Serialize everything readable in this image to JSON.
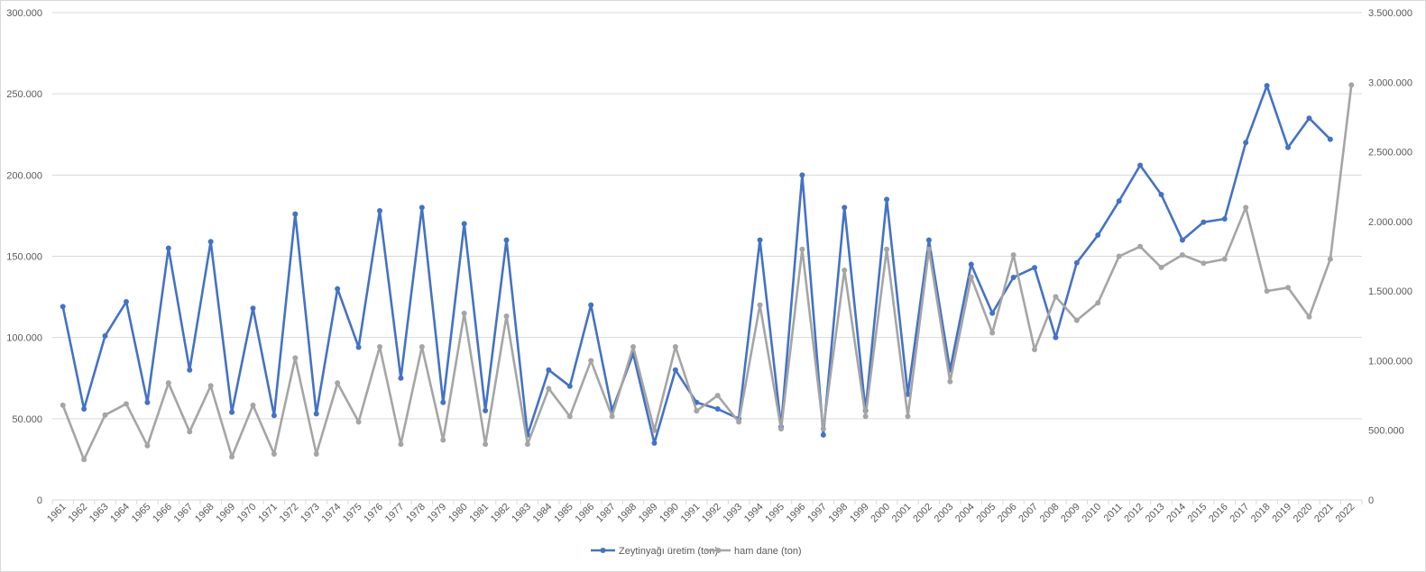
{
  "chart_data": {
    "type": "line",
    "title": "",
    "xlabel": "",
    "ylabel": "",
    "y2label": "",
    "legend_position": "bottom",
    "grid": true,
    "ylim": [
      0,
      300000
    ],
    "y2lim": [
      0,
      3500000
    ],
    "y_ticks": [
      0,
      50000,
      100000,
      150000,
      200000,
      250000,
      300000
    ],
    "y_tick_labels": [
      "0",
      "50.000",
      "100.000",
      "150.000",
      "200.000",
      "250.000",
      "300.000"
    ],
    "y2_ticks": [
      0,
      500000,
      1000000,
      1500000,
      2000000,
      2500000,
      3000000,
      3500000
    ],
    "y2_tick_labels": [
      "0",
      "500.000",
      "1.000.000",
      "1.500.000",
      "2.000.000",
      "2.500.000",
      "3.000.000",
      "3.500.000"
    ],
    "categories": [
      "1961",
      "1962",
      "1963",
      "1964",
      "1965",
      "1966",
      "1967",
      "1968",
      "1969",
      "1970",
      "1971",
      "1972",
      "1973",
      "1974",
      "1975",
      "1976",
      "1977",
      "1978",
      "1979",
      "1980",
      "1981",
      "1982",
      "1983",
      "1984",
      "1985",
      "1986",
      "1987",
      "1988",
      "1989",
      "1990",
      "1991",
      "1992",
      "1993",
      "1994",
      "1995",
      "1996",
      "1997",
      "1998",
      "1999",
      "2000",
      "2001",
      "2002",
      "2003",
      "2004",
      "2005",
      "2006",
      "2007",
      "2008",
      "2009",
      "2010",
      "2011",
      "2012",
      "2013",
      "2014",
      "2015",
      "2016",
      "2017",
      "2018",
      "2019",
      "2020",
      "2021",
      "2022"
    ],
    "series": [
      {
        "name": "Zeytinyağı üretim (ton)",
        "axis": "left",
        "color": "#4472c4",
        "values": [
          119000,
          56000,
          101000,
          122000,
          60000,
          155000,
          80000,
          159000,
          54000,
          118000,
          52000,
          176000,
          53000,
          130000,
          94000,
          178000,
          75000,
          180000,
          60000,
          170000,
          55000,
          160000,
          40000,
          80000,
          70000,
          120000,
          55000,
          90000,
          35000,
          80000,
          60000,
          56000,
          50000,
          160000,
          45000,
          200000,
          40000,
          180000,
          55000,
          185000,
          65000,
          160000,
          80000,
          145000,
          115000,
          137000,
          143000,
          100000,
          146000,
          163000,
          184000,
          206000,
          188000,
          160000,
          171000,
          173000,
          220000,
          255000,
          217000,
          235000,
          222000,
          null
        ]
      },
      {
        "name": "ham dane (ton)",
        "axis": "right",
        "color": "#a5a5a5",
        "values": [
          680000,
          290000,
          610000,
          690000,
          390000,
          840000,
          490000,
          820000,
          310000,
          680000,
          330000,
          1020000,
          330000,
          840000,
          560000,
          1100000,
          400000,
          1100000,
          430000,
          1340000,
          400000,
          1320000,
          400000,
          800000,
          600000,
          1000000,
          600000,
          1100000,
          500000,
          1100000,
          640000,
          750000,
          560000,
          1400000,
          510000,
          1800000,
          510000,
          1650000,
          600000,
          1800000,
          600000,
          1800000,
          850000,
          1600000,
          1200000,
          1760000,
          1080000,
          1460000,
          1290000,
          1415000,
          1750000,
          1820000,
          1670000,
          1760000,
          1700000,
          1730000,
          2100000,
          1500000,
          1525000,
          1315000,
          1730000,
          2980000
        ]
      }
    ]
  }
}
